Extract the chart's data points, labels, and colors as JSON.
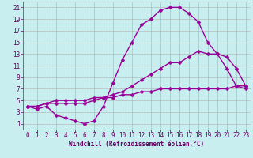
{
  "xlabel": "Windchill (Refroidissement éolien,°C)",
  "bg_color": "#c8eef0",
  "grid_color": "#b0b0b0",
  "line_color": "#990099",
  "xlim": [
    -0.5,
    23.5
  ],
  "ylim": [
    0,
    22
  ],
  "xticks": [
    0,
    1,
    2,
    3,
    4,
    5,
    6,
    7,
    8,
    9,
    10,
    11,
    12,
    13,
    14,
    15,
    16,
    17,
    18,
    19,
    20,
    21,
    22,
    23
  ],
  "yticks": [
    1,
    3,
    5,
    7,
    9,
    11,
    13,
    15,
    17,
    19,
    21
  ],
  "line1_x": [
    0,
    1,
    2,
    3,
    4,
    5,
    6,
    7,
    8,
    9,
    10,
    11,
    12,
    13,
    14,
    15,
    16,
    17,
    18,
    19,
    20,
    21,
    22,
    23
  ],
  "line1_y": [
    4.0,
    3.5,
    4.0,
    2.5,
    2.0,
    1.5,
    1.0,
    1.5,
    4.0,
    8.0,
    12.0,
    15.0,
    18.0,
    19.0,
    20.5,
    21.0,
    21.0,
    20.0,
    18.5,
    15.0,
    13.0,
    10.5,
    7.5,
    7.0
  ],
  "line2_x": [
    0,
    1,
    2,
    3,
    4,
    5,
    6,
    7,
    8,
    9,
    10,
    11,
    12,
    13,
    14,
    15,
    16,
    17,
    18,
    19,
    20,
    21,
    22,
    23
  ],
  "line2_y": [
    4.0,
    4.0,
    4.5,
    4.5,
    4.5,
    4.5,
    4.5,
    5.0,
    5.5,
    6.0,
    6.5,
    7.5,
    8.5,
    9.5,
    10.5,
    11.5,
    11.5,
    12.5,
    13.5,
    13.0,
    13.0,
    12.5,
    10.5,
    7.5
  ],
  "line3_x": [
    0,
    1,
    2,
    3,
    4,
    5,
    6,
    7,
    8,
    9,
    10,
    11,
    12,
    13,
    14,
    15,
    16,
    17,
    18,
    19,
    20,
    21,
    22,
    23
  ],
  "line3_y": [
    4.0,
    4.0,
    4.5,
    5.0,
    5.0,
    5.0,
    5.0,
    5.5,
    5.5,
    5.5,
    6.0,
    6.0,
    6.5,
    6.5,
    7.0,
    7.0,
    7.0,
    7.0,
    7.0,
    7.0,
    7.0,
    7.0,
    7.5,
    7.5
  ],
  "marker": "D",
  "markersize": 2.5,
  "linewidth": 1.0,
  "tick_fontsize": 5.5,
  "xlabel_fontsize": 5.5,
  "label_color": "#660066"
}
